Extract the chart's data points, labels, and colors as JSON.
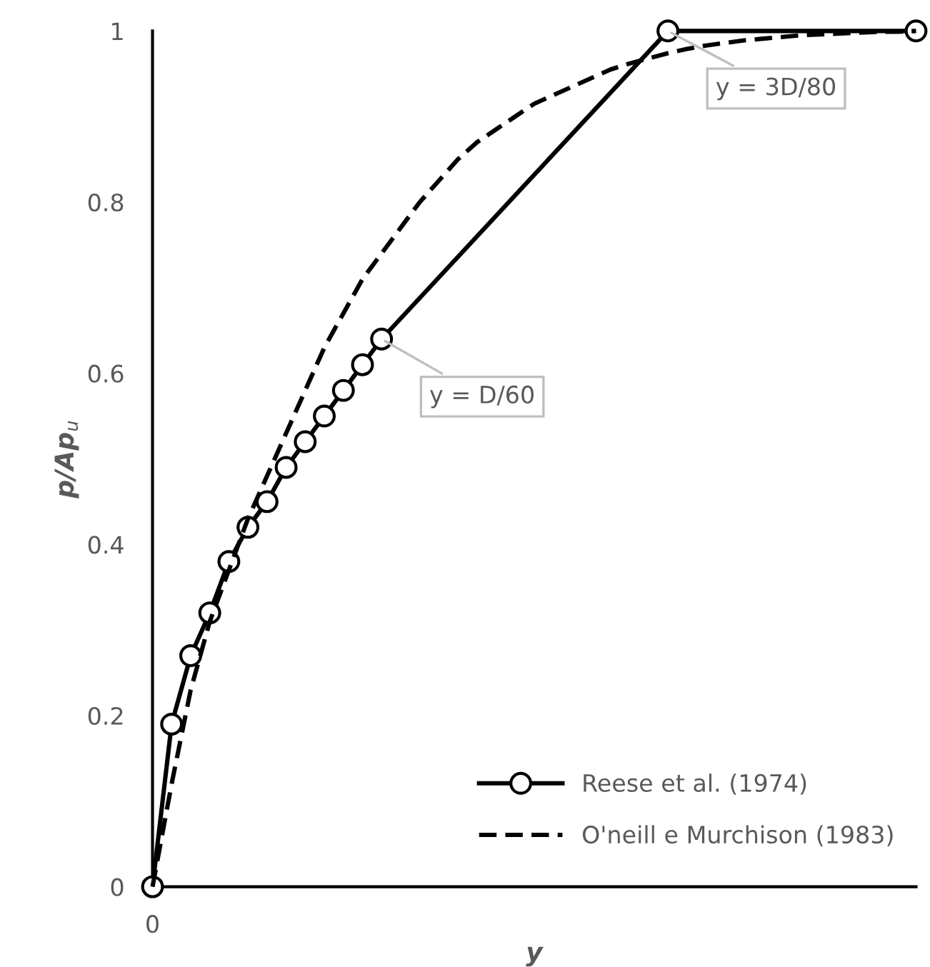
{
  "chart_data": {
    "type": "line",
    "xlabel": "y",
    "ylabel": "p/Ap$_{u}$",
    "categories": [
      "0",
      null,
      null,
      null,
      null,
      null,
      null,
      null,
      null,
      null,
      null,
      null,
      null,
      null,
      null,
      null,
      null,
      null,
      null,
      null,
      null,
      null,
      null,
      null,
      null,
      null,
      null,
      null,
      null,
      null,
      null,
      null,
      null,
      null,
      null,
      null,
      null,
      null,
      null,
      null,
      null
    ],
    "series": [
      {
        "name": "Reese et al. (1974)",
        "color": "#000000",
        "marker": "circle",
        "line_style": "solid",
        "values": [
          0,
          0.19,
          0.27,
          0.32,
          0.38,
          0.42,
          0.45,
          0.49,
          0.52,
          0.55,
          0.58,
          0.61,
          0.64,
          null,
          null,
          null,
          null,
          null,
          null,
          null,
          null,
          null,
          null,
          null,
          null,
          null,
          null,
          1,
          null,
          null,
          null,
          null,
          null,
          null,
          null,
          null,
          null,
          null,
          null,
          null,
          1
        ]
      },
      {
        "name": "O'neill e Murchison (1983)",
        "color": "#000000",
        "marker": "none",
        "line_style": "dashed",
        "values": [
          0,
          0.12,
          0.23,
          0.31,
          0.37,
          0.43,
          0.48,
          0.53,
          0.58,
          0.63,
          0.67,
          0.71,
          0.74,
          0.77,
          0.8,
          0.825,
          0.85,
          0.87,
          0.885,
          0.9,
          0.915,
          0.925,
          0.935,
          0.945,
          0.955,
          0.962,
          0.968,
          0.974,
          0.979,
          0.983,
          0.986,
          0.989,
          0.991,
          0.993,
          0.995,
          0.996,
          0.997,
          0.998,
          0.999,
          0.999,
          1
        ]
      }
    ],
    "annotations": [
      "y = D/60",
      "y = 3D/80"
    ],
    "ylim": [
      0,
      1
    ],
    "yticks": [
      0,
      0.2,
      0.4,
      0.6,
      0.8,
      1
    ],
    "grid": false,
    "legend": "bottom right"
  }
}
